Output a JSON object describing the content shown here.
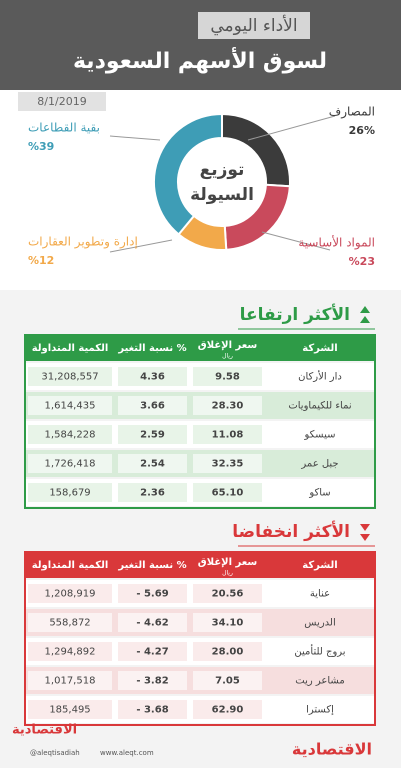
{
  "header": {
    "title": "الأداء اليومي",
    "subtitle": "لسوق الأسهم السعودية",
    "date": "8/1/2019"
  },
  "chart_data": {
    "type": "pie",
    "donut": true,
    "center_label": [
      "توزيع",
      "السيولة"
    ],
    "categories": [
      "المصارف",
      "المواد الأساسية",
      "إدارة وتطوير العقارات",
      "بقية القطاعات"
    ],
    "values": [
      26,
      23,
      12,
      39
    ],
    "value_labels": [
      "26%",
      "%23",
      "%12",
      "%39"
    ],
    "colors": [
      "#3b3b3b",
      "#c94a5c",
      "#f2a94a",
      "#3e9db6"
    ]
  },
  "gainers": {
    "title": "الأكثر ارتفاعا",
    "columns": [
      "الشركة",
      "سعر الإغلاق",
      "نسبة التغير %",
      "الكمية المتداولة"
    ],
    "unit": "ريال",
    "rows": [
      [
        "دار الأركان",
        "9.58",
        "4.36",
        "31,208,557"
      ],
      [
        "نماء للكيماويات",
        "28.30",
        "3.66",
        "1,614,435"
      ],
      [
        "سيسكو",
        "11.08",
        "2.59",
        "1,584,228"
      ],
      [
        "جبل عمر",
        "32.35",
        "2.54",
        "1,726,418"
      ],
      [
        "ساكو",
        "65.10",
        "2.36",
        "158,679"
      ]
    ]
  },
  "losers": {
    "title": "الأكثر انخفاضا",
    "columns": [
      "الشركة",
      "سعر الإغلاق",
      "نسبة التغير %",
      "الكمية المتداولة"
    ],
    "unit": "ريال",
    "rows": [
      [
        "عناية",
        "20.56",
        "- 5.69",
        "1,208,919"
      ],
      [
        "الدريس",
        "34.10",
        "- 4.62",
        "558,872"
      ],
      [
        "بروج للتأمين",
        "28.00",
        "- 4.27",
        "1,294,892"
      ],
      [
        "مشاعر ريت",
        "7.05",
        "- 3.82",
        "1,017,518"
      ],
      [
        "إكسترا",
        "62.90",
        "- 3.68",
        "185,495"
      ]
    ]
  },
  "footer": {
    "brand": "الاقتصادية",
    "handle": "@aleqtisadiah",
    "site": "www.aleqt.com"
  }
}
